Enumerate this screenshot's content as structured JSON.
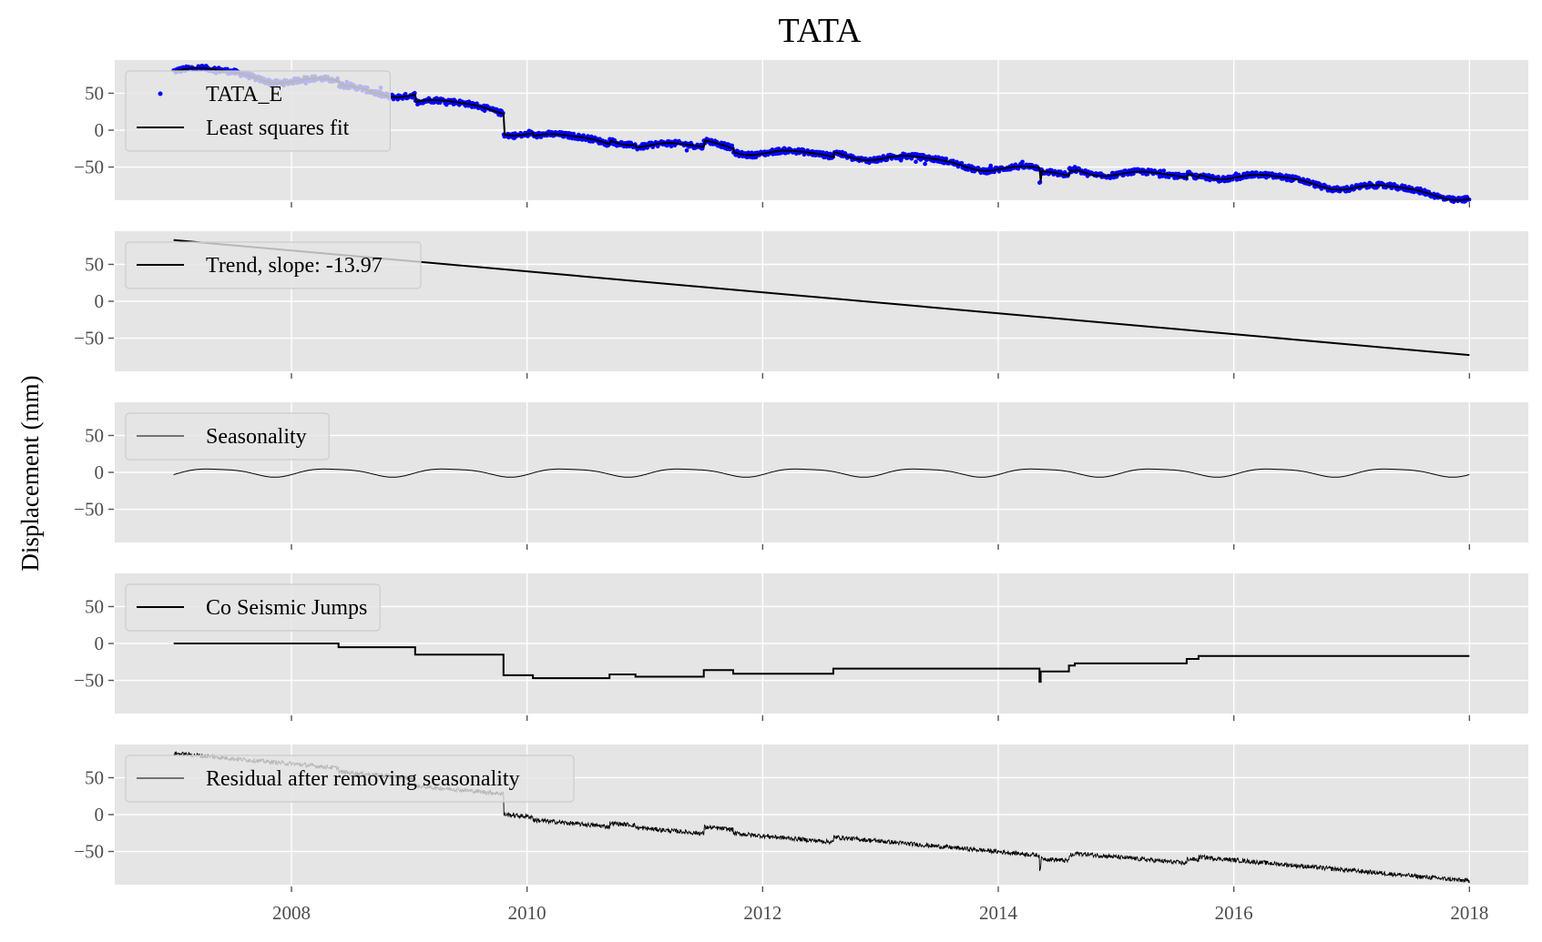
{
  "figure": {
    "title": "TATA",
    "ylabel": "Displacement (mm)"
  },
  "colors": {
    "panel_bg": "#e5e5e5",
    "grid": "#ffffff",
    "observed_points": "#0000ff",
    "fit_line": "#000000",
    "tick_text": "#4d4d4d",
    "legend_bg": "#e5e5e5",
    "legend_border": "#cccccc"
  },
  "chart_data": {
    "type": "line",
    "xlim": [
      2006.5,
      2018.5
    ],
    "ylim": [
      -95,
      95
    ],
    "x_ticks": [
      2008,
      2010,
      2012,
      2014,
      2016,
      2018
    ],
    "x_tick_labels": [
      "2008",
      "2010",
      "2012",
      "2014",
      "2016",
      "2018"
    ],
    "y_ticks": [
      50,
      0,
      -50
    ],
    "y_tick_labels": [
      "50",
      "0",
      "−50"
    ],
    "grid": true,
    "legend_placement": "upper left",
    "panels": [
      {
        "id": "observed",
        "legend": [
          {
            "label": "TATA_E",
            "style": "points"
          },
          {
            "label": "Least squares fit",
            "style": "line"
          }
        ],
        "series": [
          {
            "name": "TATA_E",
            "kind": "scatter",
            "source": "observed_sampled",
            "points": [
              [
                2007.0,
                85
              ],
              [
                2008.0,
                66
              ],
              [
                2009.0,
                48
              ],
              [
                2009.6,
                40
              ],
              [
                2009.65,
                0
              ],
              [
                2010.0,
                -5
              ],
              [
                2011.0,
                -18
              ],
              [
                2012.0,
                -32
              ],
              [
                2013.0,
                -38
              ],
              [
                2014.0,
                -50
              ],
              [
                2015.0,
                -58
              ],
              [
                2016.0,
                -62
              ],
              [
                2017.0,
                -72
              ],
              [
                2018.0,
                -88
              ]
            ]
          },
          {
            "name": "Least squares fit",
            "kind": "line",
            "source": "fit"
          }
        ]
      },
      {
        "id": "trend",
        "legend": [
          {
            "label": "Trend, slope: -13.97",
            "style": "line"
          }
        ],
        "series": [
          {
            "name": "Trend, slope: -13.97",
            "kind": "line",
            "points": [
              [
                2007.0,
                83
              ],
              [
                2018.0,
                -73
              ]
            ]
          }
        ]
      },
      {
        "id": "seasonality",
        "legend": [
          {
            "label": "Seasonality",
            "style": "thinline"
          }
        ],
        "series": [
          {
            "name": "Seasonality",
            "kind": "line",
            "source": "seasonal",
            "amplitude": 6,
            "period": 1.0,
            "x_range": [
              2007.0,
              2018.0
            ]
          }
        ]
      },
      {
        "id": "jumps",
        "legend": [
          {
            "label": "Co Seismic Jumps",
            "style": "line"
          }
        ],
        "series": [
          {
            "name": "Co Seismic Jumps",
            "kind": "step",
            "points": [
              [
                2007.0,
                0
              ],
              [
                2008.4,
                0
              ],
              [
                2008.4,
                -5
              ],
              [
                2009.05,
                -5
              ],
              [
                2009.05,
                -15
              ],
              [
                2009.8,
                -15
              ],
              [
                2009.8,
                -43
              ],
              [
                2010.05,
                -43
              ],
              [
                2010.05,
                -47
              ],
              [
                2010.7,
                -47
              ],
              [
                2010.7,
                -42
              ],
              [
                2010.92,
                -42
              ],
              [
                2010.92,
                -45
              ],
              [
                2011.5,
                -45
              ],
              [
                2011.5,
                -36
              ],
              [
                2011.75,
                -36
              ],
              [
                2011.75,
                -41
              ],
              [
                2012.6,
                -41
              ],
              [
                2012.6,
                -34
              ],
              [
                2014.35,
                -34
              ],
              [
                2014.35,
                -52
              ],
              [
                2014.36,
                -52
              ],
              [
                2014.36,
                -38
              ],
              [
                2014.6,
                -38
              ],
              [
                2014.6,
                -30
              ],
              [
                2014.65,
                -30
              ],
              [
                2014.65,
                -27
              ],
              [
                2015.6,
                -27
              ],
              [
                2015.6,
                -21
              ],
              [
                2015.7,
                -21
              ],
              [
                2015.7,
                -17
              ],
              [
                2018.0,
                -17
              ]
            ]
          }
        ]
      },
      {
        "id": "residual",
        "legend": [
          {
            "label": "Residual after removing seasonality",
            "style": "thinline"
          }
        ],
        "series": [
          {
            "name": "Residual after removing seasonality",
            "kind": "line",
            "source": "residual",
            "points": [
              [
                2007.0,
                86
              ],
              [
                2008.0,
                68
              ],
              [
                2009.0,
                48
              ],
              [
                2009.6,
                40
              ],
              [
                2009.65,
                2
              ],
              [
                2010.0,
                -5
              ],
              [
                2011.0,
                -18
              ],
              [
                2012.0,
                -30
              ],
              [
                2013.0,
                -38
              ],
              [
                2014.0,
                -50
              ],
              [
                2015.0,
                -56
              ],
              [
                2016.0,
                -62
              ],
              [
                2017.0,
                -72
              ],
              [
                2018.0,
                -88
              ]
            ]
          }
        ]
      }
    ]
  }
}
